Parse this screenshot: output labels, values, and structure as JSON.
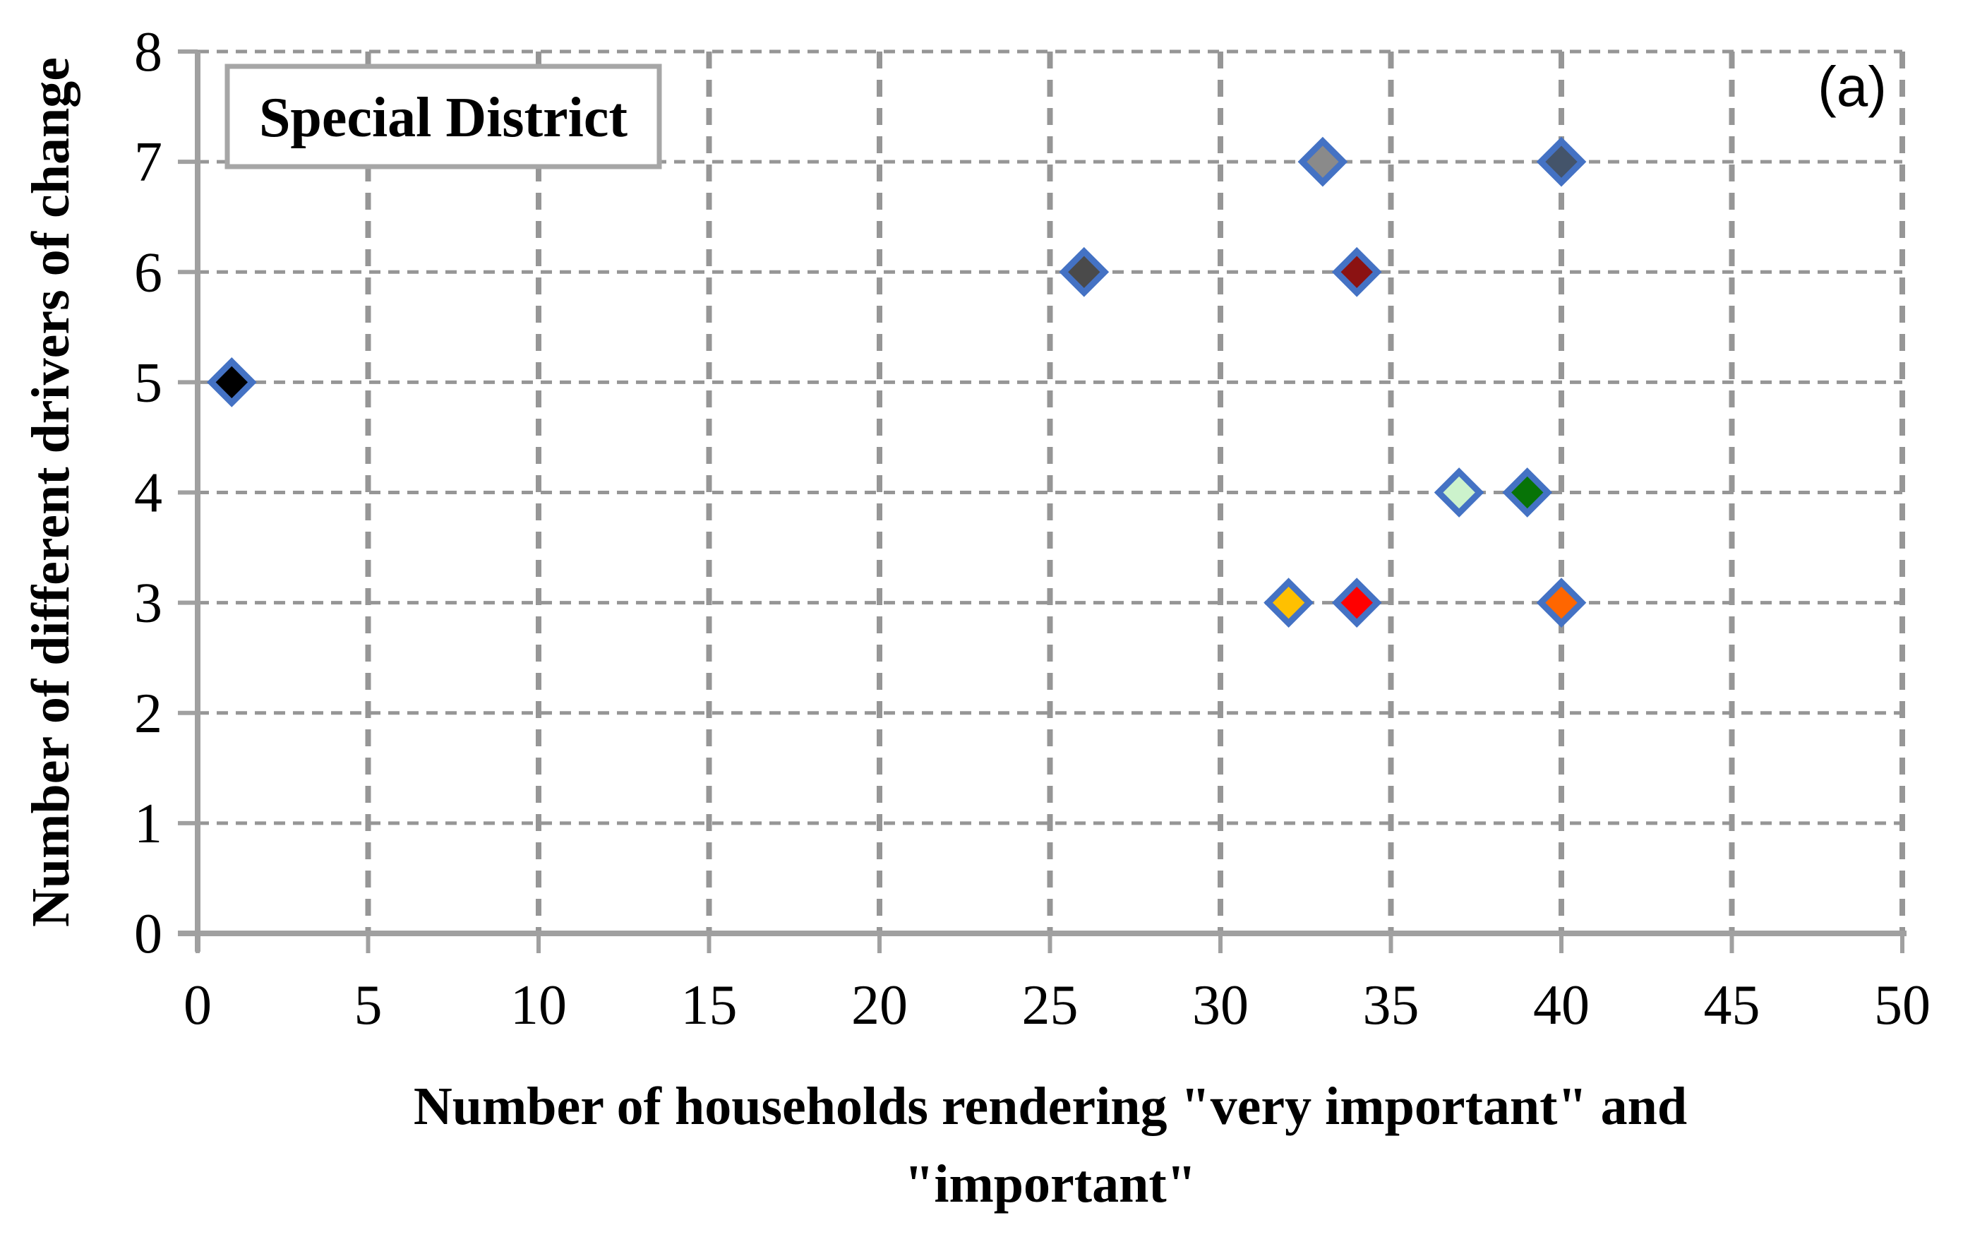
{
  "chart_data": {
    "type": "scatter",
    "title": "Special District",
    "panel_label": "(a)",
    "xlabel_line1": "Number of households rendering \"very important\" and",
    "xlabel_line2": "\"important\"",
    "ylabel": "Number of different drivers of change",
    "xlim": [
      0,
      50
    ],
    "ylim": [
      0,
      8
    ],
    "xticks": [
      0,
      5,
      10,
      15,
      20,
      25,
      30,
      35,
      40,
      45,
      50
    ],
    "yticks": [
      0,
      1,
      2,
      3,
      4,
      5,
      6,
      7,
      8
    ],
    "grid": "dashed",
    "legend": "none",
    "marker": "diamond",
    "marker_border_color": "#4472C4",
    "axis_color": "#A0A0A0",
    "grid_color": "#969696",
    "points": [
      {
        "x": 1,
        "y": 5,
        "color": "#000000"
      },
      {
        "x": 26,
        "y": 6,
        "color": "#4A4A4A"
      },
      {
        "x": 33,
        "y": 7,
        "color": "#8A8A8A"
      },
      {
        "x": 40,
        "y": 7,
        "color": "#44546A"
      },
      {
        "x": 34,
        "y": 6,
        "color": "#8B1212"
      },
      {
        "x": 37,
        "y": 4,
        "color": "#CCF2CC"
      },
      {
        "x": 39,
        "y": 4,
        "color": "#077307"
      },
      {
        "x": 32,
        "y": 3,
        "color": "#FFC000"
      },
      {
        "x": 34,
        "y": 3,
        "color": "#FF0000"
      },
      {
        "x": 40,
        "y": 3,
        "color": "#FF6600"
      }
    ]
  }
}
